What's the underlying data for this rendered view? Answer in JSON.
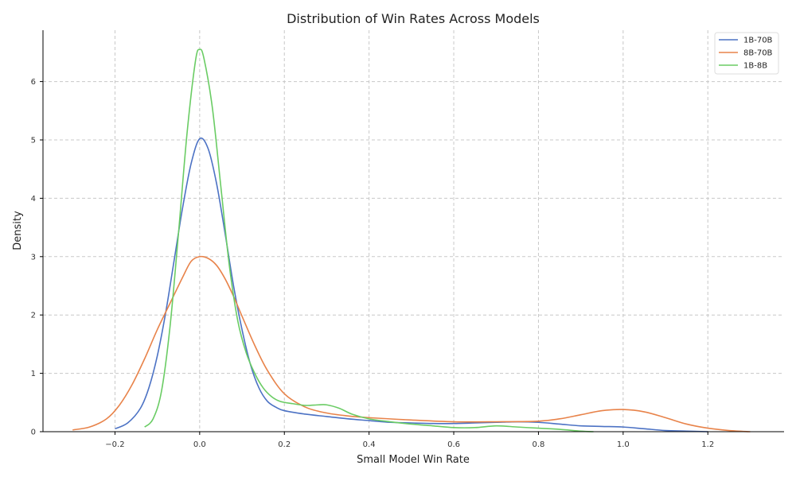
{
  "chart_data": {
    "type": "line",
    "title": "Distribution of Win Rates Across Models",
    "xlabel": "Small Model Win Rate",
    "ylabel": "Density",
    "xlim": [
      -0.37,
      1.38
    ],
    "ylim": [
      0,
      6.88
    ],
    "xticks": [
      -0.2,
      0.0,
      0.2,
      0.4,
      0.6,
      0.8,
      1.0,
      1.2
    ],
    "xtick_labels": [
      "−0.2",
      "0.0",
      "0.2",
      "0.4",
      "0.6",
      "0.8",
      "1.0",
      "1.2"
    ],
    "yticks": [
      0,
      1,
      2,
      3,
      4,
      5,
      6
    ],
    "ytick_labels": [
      "0",
      "1",
      "2",
      "3",
      "4",
      "5",
      "6"
    ],
    "grid": true,
    "legend_position": "top-right",
    "series": [
      {
        "name": "1B-70B",
        "color": "#4c72c4",
        "x": [
          -0.2,
          -0.17,
          -0.14,
          -0.12,
          -0.1,
          -0.08,
          -0.06,
          -0.04,
          -0.02,
          0.0,
          0.02,
          0.04,
          0.06,
          0.08,
          0.1,
          0.12,
          0.14,
          0.16,
          0.18,
          0.2,
          0.25,
          0.3,
          0.35,
          0.4,
          0.45,
          0.5,
          0.55,
          0.6,
          0.65,
          0.7,
          0.75,
          0.8,
          0.85,
          0.9,
          0.95,
          1.0,
          1.05,
          1.1,
          1.15,
          1.2
        ],
        "y": [
          0.05,
          0.15,
          0.4,
          0.75,
          1.3,
          2.05,
          2.95,
          3.85,
          4.6,
          5.02,
          4.85,
          4.25,
          3.4,
          2.5,
          1.75,
          1.15,
          0.75,
          0.52,
          0.42,
          0.36,
          0.3,
          0.26,
          0.22,
          0.19,
          0.16,
          0.15,
          0.14,
          0.14,
          0.15,
          0.16,
          0.17,
          0.16,
          0.13,
          0.1,
          0.09,
          0.08,
          0.05,
          0.02,
          0.01,
          0.0
        ]
      },
      {
        "name": "8B-70B",
        "color": "#e8834a",
        "x": [
          -0.3,
          -0.26,
          -0.22,
          -0.19,
          -0.16,
          -0.13,
          -0.1,
          -0.07,
          -0.04,
          -0.02,
          0.0,
          0.02,
          0.04,
          0.06,
          0.08,
          0.1,
          0.13,
          0.16,
          0.2,
          0.25,
          0.3,
          0.35,
          0.4,
          0.5,
          0.6,
          0.7,
          0.8,
          0.85,
          0.9,
          0.95,
          1.0,
          1.05,
          1.1,
          1.15,
          1.2,
          1.25,
          1.3
        ],
        "y": [
          0.03,
          0.08,
          0.22,
          0.45,
          0.8,
          1.25,
          1.75,
          2.2,
          2.65,
          2.92,
          3.0,
          2.97,
          2.85,
          2.62,
          2.32,
          1.98,
          1.48,
          1.05,
          0.65,
          0.42,
          0.32,
          0.27,
          0.24,
          0.2,
          0.17,
          0.17,
          0.18,
          0.22,
          0.29,
          0.36,
          0.38,
          0.34,
          0.24,
          0.13,
          0.06,
          0.02,
          0.0
        ]
      },
      {
        "name": "1B-8B",
        "color": "#6acc64",
        "x": [
          -0.13,
          -0.11,
          -0.09,
          -0.07,
          -0.05,
          -0.03,
          -0.01,
          0.0,
          0.01,
          0.03,
          0.05,
          0.07,
          0.09,
          0.11,
          0.13,
          0.15,
          0.17,
          0.19,
          0.22,
          0.25,
          0.28,
          0.3,
          0.33,
          0.36,
          0.4,
          0.45,
          0.5,
          0.55,
          0.6,
          0.65,
          0.7,
          0.75,
          0.8,
          0.85,
          0.9,
          0.93
        ],
        "y": [
          0.08,
          0.22,
          0.7,
          1.8,
          3.4,
          5.1,
          6.35,
          6.55,
          6.4,
          5.55,
          4.2,
          2.85,
          1.9,
          1.35,
          1.0,
          0.75,
          0.6,
          0.52,
          0.48,
          0.45,
          0.46,
          0.46,
          0.4,
          0.3,
          0.22,
          0.17,
          0.13,
          0.1,
          0.07,
          0.07,
          0.1,
          0.08,
          0.06,
          0.04,
          0.01,
          0.0
        ]
      }
    ]
  }
}
